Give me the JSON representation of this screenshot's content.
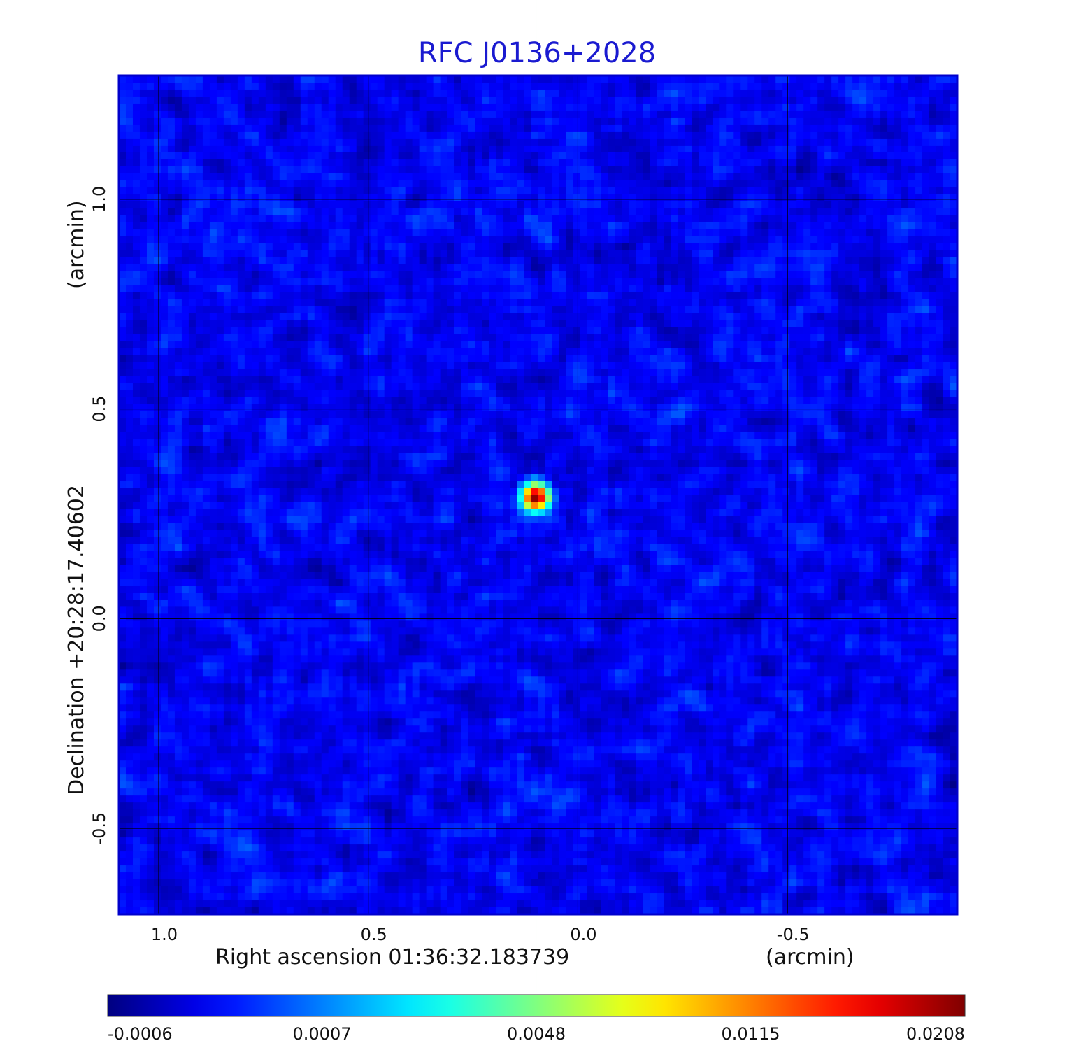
{
  "chart_data": {
    "type": "heatmap",
    "title": "RFC J0136+2028",
    "xlabel": "Right ascension  01:36:32.183739",
    "xlabel_unit": "(arcmin)",
    "ylabel": "Declination  +20:28:17.40602",
    "ylabel_unit": "(arcmin)",
    "x_range_arcmin": [
      1.095,
      -0.905
    ],
    "y_range_arcmin": [
      -0.705,
      1.295
    ],
    "x_ticks": [
      {
        "value": 1.0,
        "label": "1.0"
      },
      {
        "value": 0.5,
        "label": "0.5"
      },
      {
        "value": 0.0,
        "label": "0.0"
      },
      {
        "value": -0.5,
        "label": "-0.5"
      }
    ],
    "y_ticks": [
      {
        "value": 1.0,
        "label": "1.0"
      },
      {
        "value": 0.5,
        "label": "0.5"
      },
      {
        "value": 0.0,
        "label": "0.0"
      },
      {
        "value": -0.5,
        "label": "-0.5"
      }
    ],
    "grid": true,
    "crosshair_arcmin": {
      "x": 0.1,
      "y": 0.29
    },
    "source": {
      "x_arcmin": 0.1,
      "y_arcmin": 0.29,
      "peak": 0.0208
    },
    "background_level": 0.0,
    "colormap": "jet",
    "colorbar_min": -0.0006,
    "colorbar_max": 0.0208,
    "colorbar_ticks": [
      {
        "value": -0.0006,
        "label": "-0.0006"
      },
      {
        "value": 0.0007,
        "label": "0.0007"
      },
      {
        "value": 0.0048,
        "label": "0.0048"
      },
      {
        "value": 0.0115,
        "label": "0.0115"
      },
      {
        "value": 0.0208,
        "label": "0.0208"
      }
    ],
    "colors": {
      "title": "#1a1ad0",
      "grid": "#000000",
      "crosshair": "#22dd22",
      "frame": "#0000cc"
    }
  }
}
